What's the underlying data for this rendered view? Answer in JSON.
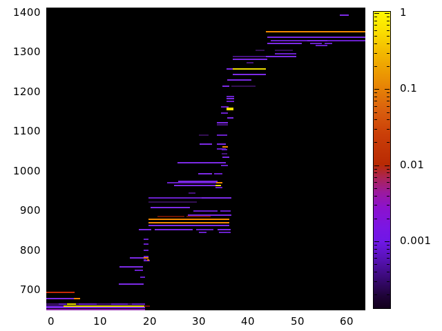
{
  "chart_data": {
    "type": "heatmap",
    "title": "",
    "description": "Black-background spectrogram-style plot: horizontal colored line segments forming an ascending staircase pattern; intensity encoded by a logarithmic yellow-orange-red-purple-black colorbar.",
    "x_axis": {
      "ticks": [
        0,
        10,
        20,
        30,
        40,
        50,
        60
      ],
      "range": [
        -1.0,
        63.77
      ],
      "grid": false
    },
    "y_axis": {
      "ticks": [
        700,
        800,
        900,
        1000,
        1100,
        1200,
        1300,
        1400
      ],
      "range": [
        647.8,
        1412.2
      ],
      "grid": false
    },
    "colorbar": {
      "scale": "log",
      "tick_labels": [
        "1",
        "0.1",
        "0.01",
        "0.001"
      ],
      "tick_values": [
        1,
        0.1,
        0.01,
        0.001
      ],
      "top_value": 1,
      "bottom_value": 0.000125,
      "gradient_stops": [
        [
          0.0,
          "#fff800"
        ],
        [
          0.065,
          "#fbdf00"
        ],
        [
          0.135,
          "#f3ba00"
        ],
        [
          0.205,
          "#ec9a02"
        ],
        [
          0.26,
          "#e68106"
        ],
        [
          0.335,
          "#d95e0e"
        ],
        [
          0.415,
          "#ca3e08"
        ],
        [
          0.515,
          "#b82a03"
        ],
        [
          0.56,
          "#ab2455"
        ],
        [
          0.61,
          "#9b1a9e"
        ],
        [
          0.66,
          "#8c12cc"
        ],
        [
          0.73,
          "#7a16e4"
        ],
        [
          0.775,
          "#6f17e6"
        ],
        [
          0.835,
          "#5712b4"
        ],
        [
          0.9,
          "#390974"
        ],
        [
          0.96,
          "#1e0336"
        ],
        [
          1.0,
          "#12001c"
        ]
      ]
    },
    "palette": {
      "P": "#7d2ae8",
      "P2": "#6a20cc",
      "D": "#47127f",
      "DD": "#341055",
      "O": "#f58a00",
      "Y": "#f0e000",
      "R": "#c62a06",
      "DR": "#6b1203",
      "M": "#9326b0"
    },
    "segments": [
      [
        -1,
        4.8,
        693,
        "R"
      ],
      [
        -1,
        4.6,
        677,
        "P"
      ],
      [
        4.6,
        5.9,
        677,
        "O"
      ],
      [
        -1,
        19,
        664,
        "D"
      ],
      [
        1.5,
        3.1,
        664,
        "P2"
      ],
      [
        3.2,
        5.0,
        664,
        "Y"
      ],
      [
        5.6,
        9.2,
        664,
        "P2"
      ],
      [
        12.2,
        15.6,
        664,
        "P2"
      ],
      [
        16.4,
        19,
        664,
        "P2"
      ],
      [
        -1,
        2.5,
        658,
        "P2"
      ],
      [
        2.5,
        18.9,
        658,
        "Y"
      ],
      [
        18.9,
        20,
        658,
        "DR"
      ],
      [
        -1,
        19,
        654,
        "P"
      ],
      [
        -1,
        19,
        650,
        "M"
      ],
      [
        13.7,
        18.8,
        714,
        "P"
      ],
      [
        18,
        19.1,
        731,
        "P2"
      ],
      [
        17,
        18.7,
        749,
        "P2"
      ],
      [
        13.9,
        18.7,
        757,
        "P"
      ],
      [
        18.7,
        20,
        773,
        "P2"
      ],
      [
        16,
        18.8,
        780,
        "P"
      ],
      [
        18.8,
        19.8,
        780,
        "O"
      ],
      [
        18.8,
        19.4,
        775,
        "P2"
      ],
      [
        19.4,
        19.9,
        775,
        "O"
      ],
      [
        18.8,
        19.8,
        783,
        "P2"
      ],
      [
        18.8,
        19.8,
        799,
        "P2"
      ],
      [
        18.8,
        19.8,
        815,
        "P2"
      ],
      [
        18.8,
        19.8,
        828,
        "P2"
      ],
      [
        30,
        31.5,
        844,
        "P2"
      ],
      [
        34,
        36.4,
        844,
        "P2"
      ],
      [
        17.8,
        20.3,
        852,
        "P"
      ],
      [
        21,
        28.8,
        852,
        "P"
      ],
      [
        29.4,
        33,
        852,
        "P2"
      ],
      [
        33.8,
        36.5,
        852,
        "P"
      ],
      [
        19.8,
        36.2,
        862,
        "P"
      ],
      [
        19.8,
        36.2,
        869,
        "O"
      ],
      [
        19.8,
        36.2,
        877,
        "O"
      ],
      [
        21.5,
        27,
        884,
        "DR"
      ],
      [
        27.5,
        32.4,
        884,
        "DR"
      ],
      [
        27.8,
        36.6,
        888,
        "P"
      ],
      [
        28.9,
        33.8,
        898,
        "P2"
      ],
      [
        34.3,
        36.5,
        898,
        "P2"
      ],
      [
        20.2,
        28.2,
        908,
        "P"
      ],
      [
        19.8,
        29.5,
        922,
        "DD"
      ],
      [
        19.8,
        30.5,
        931,
        "P2"
      ],
      [
        30.5,
        36.6,
        931,
        "P"
      ],
      [
        27.9,
        29.3,
        944,
        "D"
      ],
      [
        33.3,
        34.7,
        957,
        "P2"
      ],
      [
        24.9,
        33.3,
        963,
        "P"
      ],
      [
        33.3,
        34.5,
        963,
        "Y"
      ],
      [
        23.5,
        33.5,
        970,
        "P2"
      ],
      [
        33.5,
        34.7,
        970,
        "O"
      ],
      [
        25.8,
        33.8,
        974,
        "P"
      ],
      [
        29.8,
        32.6,
        993,
        "P"
      ],
      [
        33,
        34.7,
        993,
        "P2"
      ],
      [
        34.5,
        35.9,
        1014,
        "P2"
      ],
      [
        25.6,
        35.4,
        1021,
        "P"
      ],
      [
        34.7,
        36.2,
        1034,
        "P"
      ],
      [
        34.6,
        35.8,
        1043,
        "D"
      ],
      [
        34.6,
        35.8,
        1053,
        "P2"
      ],
      [
        33.6,
        35.4,
        1056,
        "P2"
      ],
      [
        34.7,
        35.9,
        1060,
        "O"
      ],
      [
        30.1,
        32.6,
        1068,
        "P"
      ],
      [
        33.6,
        35.4,
        1068,
        "P"
      ],
      [
        30,
        32,
        1090,
        "DD"
      ],
      [
        33.6,
        35.7,
        1091,
        "P2"
      ],
      [
        33.6,
        35.9,
        1117,
        "D"
      ],
      [
        33.6,
        35.9,
        1121,
        "P"
      ],
      [
        35.7,
        37,
        1133,
        "P"
      ],
      [
        34.5,
        35.9,
        1146,
        "P2"
      ],
      [
        35.6,
        37,
        1154,
        "Y"
      ],
      [
        35.6,
        37,
        1158,
        "Y"
      ],
      [
        34.5,
        36,
        1161,
        "P2"
      ],
      [
        35.6,
        37.2,
        1175,
        "P2"
      ],
      [
        35.6,
        37.2,
        1182,
        "P"
      ],
      [
        35.6,
        37.2,
        1188,
        "P2"
      ],
      [
        34.7,
        36.2,
        1214,
        "P"
      ],
      [
        36.6,
        41.5,
        1214,
        "DD"
      ],
      [
        35.7,
        40.6,
        1229,
        "P"
      ],
      [
        36.8,
        43.6,
        1243,
        "P"
      ],
      [
        35.6,
        36.8,
        1257,
        "P"
      ],
      [
        36.8,
        43.6,
        1257,
        "Y"
      ],
      [
        39.6,
        41,
        1273,
        "D"
      ],
      [
        36.8,
        43.9,
        1281,
        "P"
      ],
      [
        36.8,
        43.6,
        1289,
        "D"
      ],
      [
        43.6,
        49.7,
        1289,
        "P"
      ],
      [
        45.4,
        49.7,
        1296,
        "P2"
      ],
      [
        41.5,
        43.3,
        1304,
        "DD"
      ],
      [
        45.4,
        49,
        1304,
        "DD"
      ],
      [
        53.7,
        56,
        1316,
        "P2"
      ],
      [
        43.9,
        50.9,
        1322,
        "P"
      ],
      [
        52.5,
        55,
        1322,
        "P2"
      ],
      [
        55.5,
        57,
        1322,
        "P2"
      ],
      [
        44.6,
        63.8,
        1329,
        "P2"
      ],
      [
        52,
        56,
        1329,
        "P"
      ],
      [
        43.9,
        63.8,
        1337,
        "P"
      ],
      [
        43.6,
        63.8,
        1351,
        "O"
      ],
      [
        58.6,
        60.4,
        1394,
        "P"
      ]
    ]
  }
}
